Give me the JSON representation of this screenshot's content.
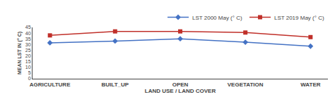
{
  "chart_data": {
    "type": "line",
    "categories": [
      "AGRICULTURE",
      "BUILT_UP",
      "OPEN",
      "VEGETATION",
      "WATER"
    ],
    "series": [
      {
        "name": "LST 2000 May (° C)",
        "color": "#4472C4",
        "marker": "diamond",
        "values": [
          31.5,
          33.0,
          35.0,
          32.0,
          28.5
        ]
      },
      {
        "name": "LST 2019 May (° C)",
        "color": "#C0302A",
        "marker": "square",
        "values": [
          38.0,
          41.5,
          41.5,
          40.5,
          36.5
        ]
      }
    ],
    "xlabel": "LAND USE / LAND COVER",
    "ylabel": "MEAN LST IN (° C)",
    "ylim": [
      0,
      45
    ],
    "yticks": [
      0,
      5,
      10,
      15,
      20,
      25,
      30,
      35,
      40,
      45
    ],
    "grid": false,
    "legend": "upper right"
  }
}
